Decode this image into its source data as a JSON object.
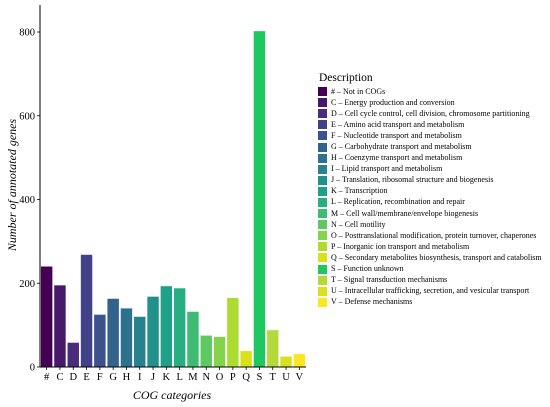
{
  "chart_data": {
    "type": "bar",
    "xlabel": "COG categories",
    "ylabel": "Number of annotated genes",
    "ylim": [
      0,
      800
    ],
    "yticks": [
      0,
      200,
      400,
      600,
      800
    ],
    "legend_title": "Description",
    "legend_placement": "right",
    "grid": false,
    "categories": [
      "#",
      "C",
      "D",
      "E",
      "F",
      "G",
      "H",
      "I",
      "J",
      "K",
      "L",
      "M",
      "N",
      "O",
      "P",
      "Q",
      "S",
      "T",
      "U",
      "V"
    ],
    "values": [
      240,
      195,
      58,
      268,
      125,
      163,
      140,
      120,
      168,
      193,
      188,
      132,
      75,
      72,
      165,
      38,
      802,
      88,
      25,
      31
    ],
    "colors": [
      "#440154",
      "#48186a",
      "#472d7b",
      "#424086",
      "#3b528b",
      "#33638d",
      "#2c728e",
      "#26828e",
      "#21918c",
      "#1fa088",
      "#28ae80",
      "#3fbc73",
      "#5ec962",
      "#84d44b",
      "#addc30",
      "#d8e219",
      "#1ec760",
      "#b4d93a",
      "#d9e01f",
      "#fde725"
    ],
    "legend": [
      "# – Not in COGs",
      "C – Energy production and conversion",
      "D – Cell cycle control, cell division, chromosome partitioning",
      "E – Amino acid transport and metabolism",
      "F – Nucleotide transport and metabolism",
      "G – Carbohydrate transport and metabolism",
      "H – Coenzyme transport and metabolism",
      "I – Lipid transport and metabolism",
      "J – Translation, ribosomal structure and biogenesis",
      "K – Transcription",
      "L – Replication, recombination and repair",
      "M – Cell wall/membrane/envelope biogenesis",
      "N – Cell motility",
      "O – Posttranslational modification, protein turnover, chaperones",
      "P – Inorganic ion transport and metabolism",
      "Q – Secondary metabolites biosynthesis, transport and catabolism",
      "S – Function unknown",
      "T – Signal transduction mechanisms",
      "U – Intracellular trafficking, secretion, and vesicular transport",
      "V – Defense mechanisms"
    ]
  }
}
